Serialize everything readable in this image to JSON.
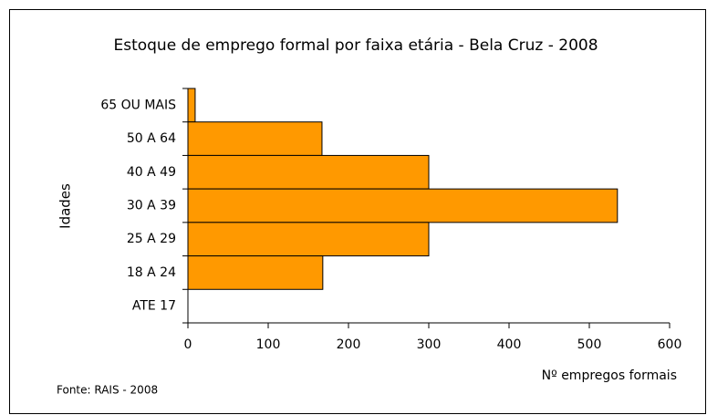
{
  "chart_data": {
    "type": "hbar",
    "title": "Estoque de emprego formal por faixa etária - Bela Cruz - 2008",
    "y_label": "Idades",
    "x_label": "Nº empregos formais",
    "source": "Fonte: RAIS - 2008",
    "categories": [
      "65 OU MAIS",
      "50 A 64",
      "40 A 49",
      "30 A 39",
      "25 A 29",
      "18 A 24",
      "ATE 17"
    ],
    "values": [
      9,
      167,
      300,
      535,
      300,
      168,
      0
    ],
    "color": "#ff9900",
    "xlim": [
      0,
      600
    ],
    "xticks": [
      0,
      100,
      200,
      300,
      400,
      500,
      600
    ]
  }
}
